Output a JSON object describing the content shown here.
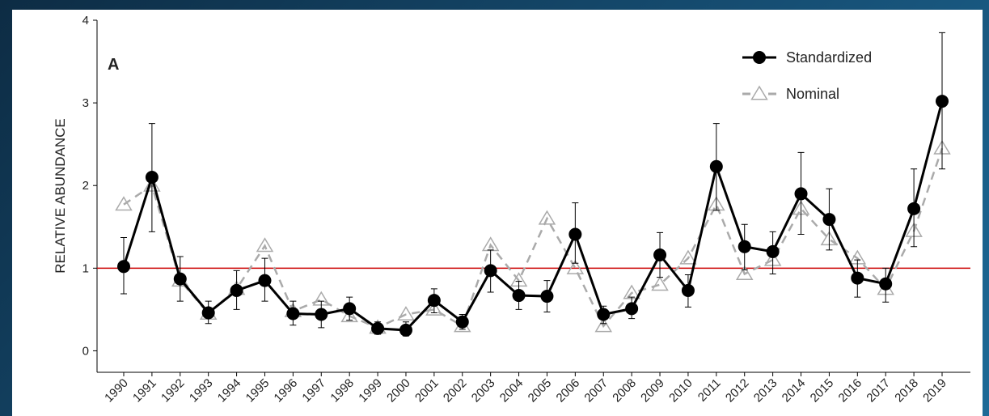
{
  "chart_data": {
    "type": "line",
    "annotation": "A",
    "y_label": "RELATIVE ABUNDANCE",
    "categories": [
      "1990",
      "1991",
      "1992",
      "1993",
      "1994",
      "1995",
      "1996",
      "1997",
      "1998",
      "1999",
      "2000",
      "2001",
      "2002",
      "2003",
      "2004",
      "2005",
      "2006",
      "2007",
      "2008",
      "2009",
      "2010",
      "2011",
      "2012",
      "2013",
      "2014",
      "2015",
      "2016",
      "2017",
      "2018",
      "2019"
    ],
    "series": [
      {
        "name": "Standardized",
        "color": "#000000",
        "marker": "circle",
        "dash": false,
        "values": [
          1.02,
          2.1,
          0.87,
          0.46,
          0.73,
          0.85,
          0.45,
          0.44,
          0.51,
          0.27,
          0.25,
          0.61,
          0.35,
          0.97,
          0.67,
          0.66,
          1.41,
          0.44,
          0.51,
          1.16,
          0.73,
          2.23,
          1.26,
          1.2,
          1.9,
          1.59,
          0.88,
          0.81,
          1.72,
          3.02
        ],
        "error_upper": [
          1.37,
          2.75,
          1.14,
          0.6,
          0.97,
          1.12,
          0.6,
          0.6,
          0.65,
          0.35,
          0.35,
          0.75,
          0.44,
          1.22,
          0.84,
          0.85,
          1.79,
          0.54,
          0.65,
          1.43,
          0.92,
          2.75,
          1.53,
          1.44,
          2.4,
          1.96,
          1.1,
          1.0,
          2.2,
          3.85
        ],
        "error_lower": [
          0.69,
          1.44,
          0.6,
          0.33,
          0.5,
          0.6,
          0.31,
          0.28,
          0.37,
          0.2,
          0.18,
          0.46,
          0.26,
          0.71,
          0.5,
          0.47,
          1.06,
          0.33,
          0.39,
          0.89,
          0.53,
          1.7,
          0.98,
          0.93,
          1.41,
          1.22,
          0.65,
          0.59,
          1.26,
          2.2
        ]
      },
      {
        "name": "Nominal",
        "color": "#aaaaaa",
        "marker": "triangle",
        "dash": true,
        "values": [
          1.77,
          2.0,
          0.85,
          0.45,
          0.75,
          1.27,
          0.48,
          0.62,
          0.42,
          0.28,
          0.44,
          0.5,
          0.3,
          1.28,
          0.85,
          1.6,
          1.0,
          0.3,
          0.7,
          0.8,
          1.12,
          1.77,
          0.93,
          1.1,
          1.72,
          1.35,
          1.12,
          0.75,
          1.45,
          2.45
        ]
      }
    ],
    "reference_line": {
      "value": 1,
      "color": "#cc0000"
    },
    "ylim": [
      -0.26,
      4
    ],
    "yticks": [
      0,
      1,
      2,
      3,
      4
    ],
    "legend": "top-right"
  }
}
